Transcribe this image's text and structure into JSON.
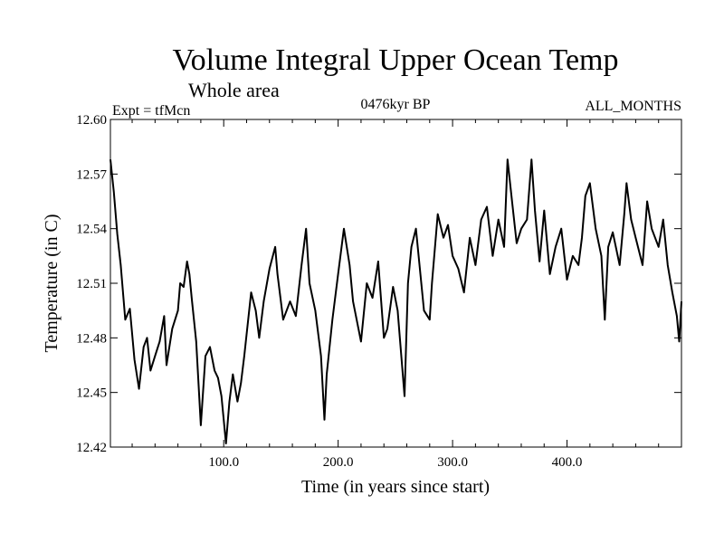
{
  "chart_data": {
    "type": "line",
    "title": "Volume Integral Upper Ocean Temp",
    "subtitle": "Whole area",
    "left_label": "Expt = tfMcn",
    "center_label": "0476kyr BP",
    "right_label": "ALL_MONTHS",
    "xlabel": "Time (in years since start)",
    "ylabel": "Temperature (in C)",
    "xlim": [
      1,
      500
    ],
    "ylim": [
      12.42,
      12.6
    ],
    "x_ticks": [
      {
        "value": 100,
        "label": "100.0"
      },
      {
        "value": 200,
        "label": "200.0"
      },
      {
        "value": 300,
        "label": "300.0"
      },
      {
        "value": 400,
        "label": "400.0"
      }
    ],
    "y_ticks": [
      {
        "value": 12.42,
        "label": "12.42"
      },
      {
        "value": 12.45,
        "label": "12.45"
      },
      {
        "value": 12.48,
        "label": "12.48"
      },
      {
        "value": 12.51,
        "label": "12.51"
      },
      {
        "value": 12.54,
        "label": "12.54"
      },
      {
        "value": 12.57,
        "label": "12.57"
      },
      {
        "value": 12.6,
        "label": "12.60"
      }
    ],
    "grid": false,
    "line_color": "#000000",
    "series": [
      {
        "x": [
          1,
          4,
          7,
          10,
          14,
          18,
          22,
          26,
          30,
          33,
          36,
          40,
          44,
          48,
          50,
          55,
          60,
          62,
          65,
          68,
          70,
          72,
          76,
          80,
          84,
          88,
          92,
          95,
          98,
          102,
          105,
          108,
          112,
          115,
          118,
          120,
          124,
          128,
          131,
          135,
          140,
          145,
          147,
          152,
          158,
          163,
          168,
          172,
          175,
          180,
          185,
          188,
          190,
          195,
          200,
          205,
          210,
          213,
          220,
          225,
          230,
          235,
          240,
          243,
          248,
          252,
          258,
          261,
          264,
          268,
          275,
          280,
          282,
          287,
          292,
          296,
          300,
          305,
          310,
          315,
          320,
          325,
          330,
          335,
          340,
          345,
          348,
          352,
          356,
          360,
          365,
          369,
          372,
          376,
          380,
          385,
          390,
          395,
          400,
          405,
          410,
          413,
          416,
          420,
          425,
          430,
          433,
          436,
          440,
          446,
          450,
          452,
          456,
          460,
          466,
          470,
          474,
          480,
          484,
          488,
          492,
          496,
          498,
          500
        ],
        "y": [
          12.578,
          12.56,
          12.537,
          12.52,
          12.49,
          12.496,
          12.468,
          12.452,
          12.475,
          12.48,
          12.462,
          12.47,
          12.478,
          12.492,
          12.465,
          12.485,
          12.495,
          12.51,
          12.508,
          12.522,
          12.515,
          12.502,
          12.478,
          12.432,
          12.47,
          12.475,
          12.462,
          12.458,
          12.448,
          12.422,
          12.445,
          12.46,
          12.445,
          12.455,
          12.47,
          12.482,
          12.505,
          12.495,
          12.48,
          12.5,
          12.518,
          12.53,
          12.515,
          12.49,
          12.5,
          12.492,
          12.52,
          12.54,
          12.51,
          12.495,
          12.47,
          12.435,
          12.46,
          12.49,
          12.515,
          12.54,
          12.52,
          12.5,
          12.478,
          12.51,
          12.502,
          12.522,
          12.48,
          12.485,
          12.508,
          12.495,
          12.448,
          12.51,
          12.53,
          12.54,
          12.495,
          12.49,
          12.51,
          12.548,
          12.535,
          12.542,
          12.525,
          12.518,
          12.505,
          12.535,
          12.52,
          12.545,
          12.552,
          12.525,
          12.545,
          12.53,
          12.578,
          12.555,
          12.532,
          12.54,
          12.545,
          12.578,
          12.55,
          12.522,
          12.55,
          12.515,
          12.53,
          12.54,
          12.512,
          12.525,
          12.52,
          12.535,
          12.558,
          12.565,
          12.54,
          12.525,
          12.49,
          12.53,
          12.538,
          12.52,
          12.548,
          12.565,
          12.545,
          12.535,
          12.52,
          12.555,
          12.54,
          12.53,
          12.545,
          12.52,
          12.505,
          12.492,
          12.478,
          12.5
        ]
      }
    ]
  }
}
